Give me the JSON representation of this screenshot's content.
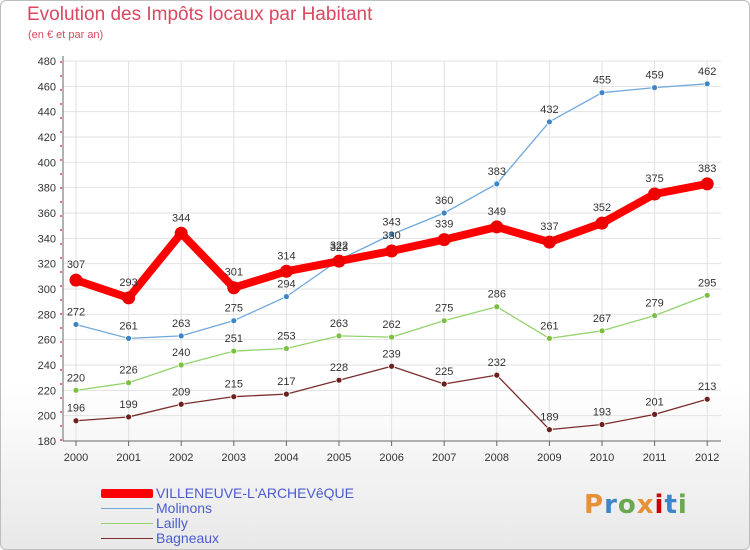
{
  "chart_data": {
    "type": "line",
    "title": "Evolution des Impôts locaux par Habitant",
    "subtitle": "(en € et par an)",
    "xlabel": "",
    "ylabel": "",
    "x": [
      "2000",
      "2001",
      "2002",
      "2003",
      "2004",
      "2005",
      "2006",
      "2007",
      "2008",
      "2009",
      "2010",
      "2011",
      "2012"
    ],
    "ylim": [
      180,
      480
    ],
    "yticks": [
      180,
      200,
      220,
      240,
      260,
      280,
      300,
      320,
      340,
      360,
      380,
      400,
      420,
      440,
      460,
      480
    ],
    "grid": true,
    "legend_position": "bottom-left",
    "series": [
      {
        "name": "Molinons",
        "color": "#6fa8dc",
        "marker_color": "#3d85c6",
        "values": [
          272,
          261,
          263,
          275,
          294,
          323,
          343,
          360,
          383,
          432,
          455,
          459,
          462
        ]
      },
      {
        "name": "Lailly",
        "color": "#93d36b",
        "marker_color": "#7bc043",
        "values": [
          220,
          226,
          240,
          251,
          253,
          263,
          262,
          275,
          286,
          261,
          267,
          279,
          295
        ]
      },
      {
        "name": "Bagneaux",
        "color": "#7b2d2d",
        "marker_color": "#6b1f1f",
        "values": [
          196,
          199,
          209,
          215,
          217,
          228,
          239,
          225,
          232,
          189,
          193,
          201,
          213
        ]
      },
      {
        "name": "VILLENEUVE-L'ARCHEVêQUE",
        "color": "#ff0000",
        "marker_color": "#ee0000",
        "values": [
          307,
          293,
          344,
          301,
          314,
          322,
          330,
          339,
          349,
          337,
          352,
          375,
          383
        ]
      }
    ]
  },
  "legend": [
    {
      "label": "VILLENEUVE-L'ARCHEVêQUE",
      "color": "#ff0000",
      "thick": true
    },
    {
      "label": "Molinons",
      "color": "#6fa8dc",
      "thick": false
    },
    {
      "label": "Lailly",
      "color": "#93d36b",
      "thick": false
    },
    {
      "label": "Bagneaux",
      "color": "#7b2d2d",
      "thick": false
    }
  ],
  "logo": {
    "text": "Proxiti",
    "colors": [
      "#e69138",
      "#3d85c6",
      "#6aa84f",
      "#e69138",
      "#cc0000",
      "#3d85c6",
      "#6aa84f"
    ]
  }
}
